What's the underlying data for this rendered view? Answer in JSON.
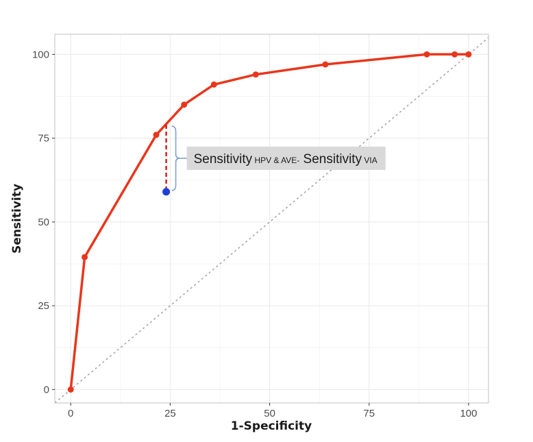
{
  "chart_data": {
    "type": "line",
    "title": "",
    "xlabel": "1-Specificity",
    "ylabel": "Sensitivity",
    "xlim": [
      -4,
      105
    ],
    "ylim": [
      -4,
      106
    ],
    "x_ticks": [
      0,
      25,
      50,
      75,
      100
    ],
    "y_ticks": [
      0,
      25,
      50,
      75,
      100
    ],
    "grid": true,
    "series": [
      {
        "color": "#e8361c",
        "points": [
          {
            "x": 0,
            "y": 0
          },
          {
            "x": 3.5,
            "y": 39.5
          },
          {
            "x": 21.5,
            "y": 76
          },
          {
            "x": 28.5,
            "y": 85
          },
          {
            "x": 36,
            "y": 91
          },
          {
            "x": 46.5,
            "y": 94
          },
          {
            "x": 64,
            "y": 97
          },
          {
            "x": 89.5,
            "y": 100
          },
          {
            "x": 96.5,
            "y": 100
          },
          {
            "x": 100,
            "y": 100
          }
        ]
      }
    ],
    "reference_line": {
      "from": [
        -4,
        -4
      ],
      "to": [
        105,
        105
      ],
      "color": "#a6a6a6",
      "style": "dotted"
    },
    "highlight_point": {
      "x": 24,
      "y": 59,
      "color": "#1f3fd9"
    },
    "difference_segment": {
      "x": 24,
      "y_from": 59,
      "y_to": 79,
      "color": "#d8201a",
      "style": "dashed"
    },
    "annotation": {
      "parts": [
        {
          "text": "Sensitivity",
          "size": "large"
        },
        {
          "text": " HPV & AVE-",
          "size": "small"
        },
        {
          "text": " Sensitivity",
          "size": "large"
        },
        {
          "text": " VIA",
          "size": "small"
        }
      ],
      "box_color": "#d9d9d9",
      "bracket_color": "#7f9fd6"
    }
  }
}
